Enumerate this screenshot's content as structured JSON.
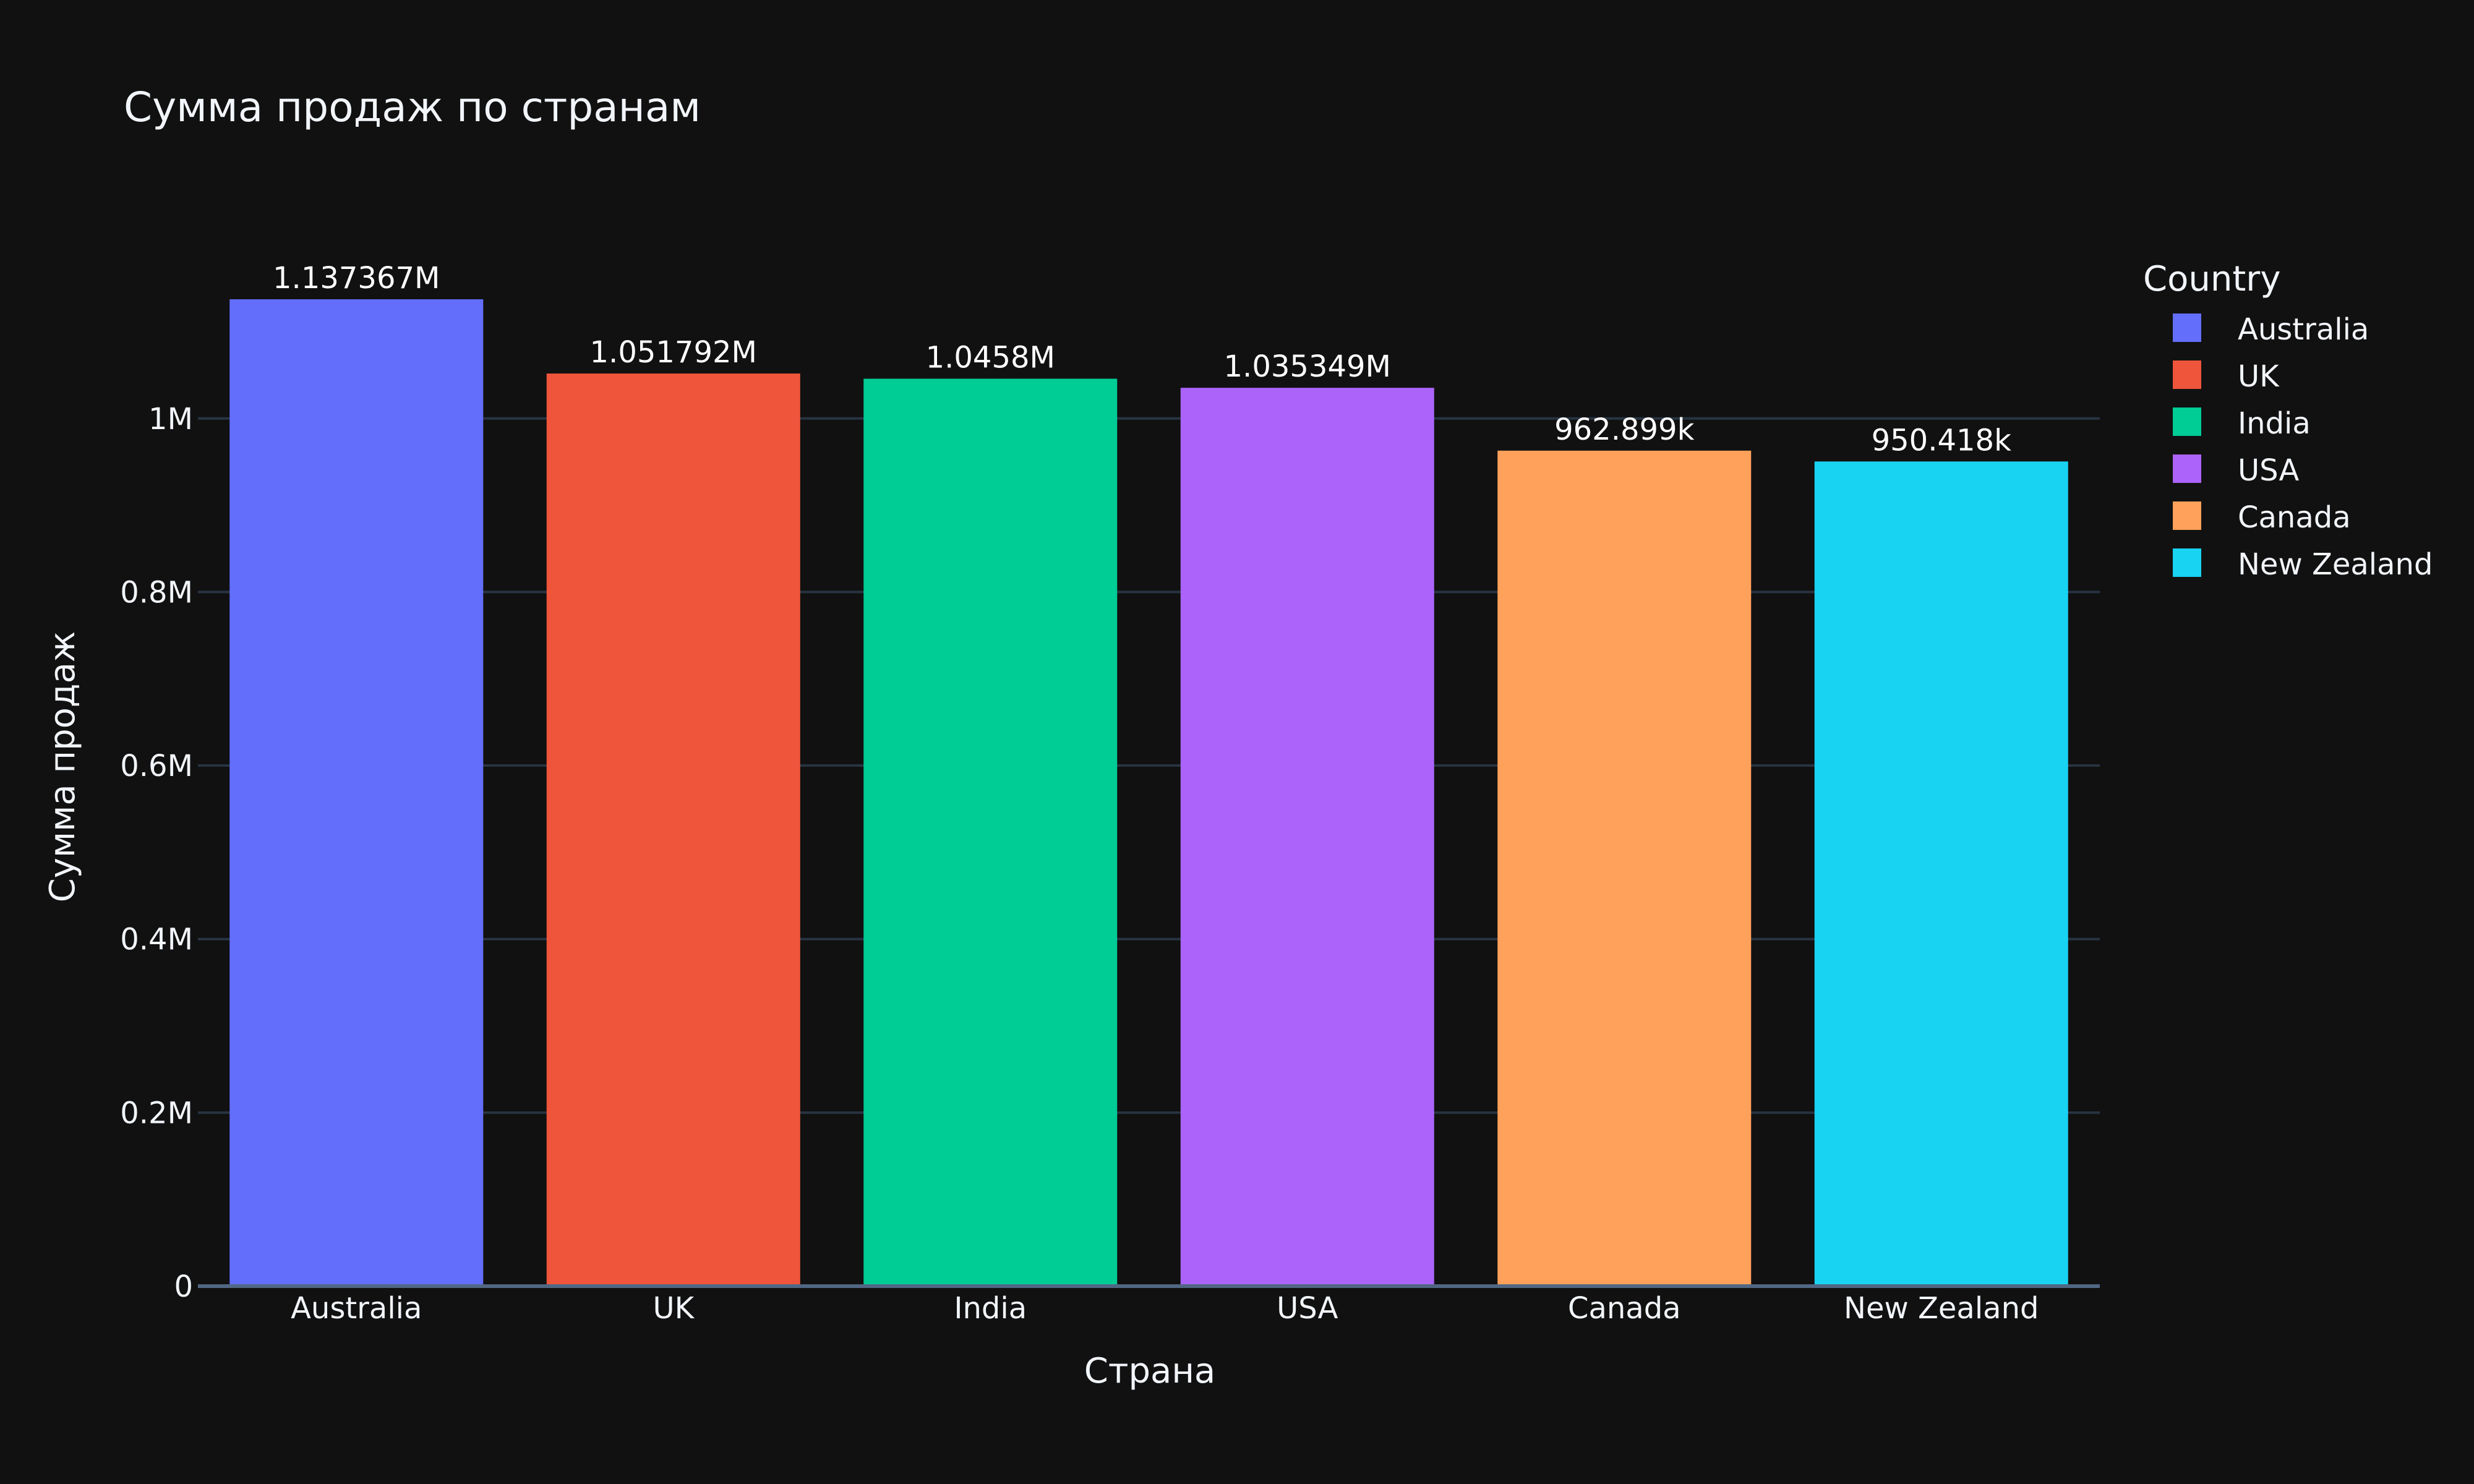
{
  "chart_data": {
    "type": "bar",
    "title": "Сумма продаж по странам",
    "xlabel": "Страна",
    "ylabel": "Сумма продаж",
    "categories": [
      "Australia",
      "UK",
      "India",
      "USA",
      "Canada",
      "New Zealand"
    ],
    "values": [
      1137367,
      1051792,
      1045800,
      1035349,
      962899,
      950418
    ],
    "data_labels": [
      "1.137367M",
      "1.051792M",
      "1.0458M",
      "1.035349M",
      "962.899k",
      "950.418k"
    ],
    "colors": [
      "#636efa",
      "#ef553b",
      "#00cc96",
      "#ab63fa",
      "#ffa15a",
      "#19d3f3"
    ],
    "ylim": [
      0,
      1197228
    ],
    "yticks": [
      0,
      200000,
      400000,
      600000,
      800000,
      1000000
    ],
    "ytick_labels": [
      "0",
      "0.2M",
      "0.4M",
      "0.6M",
      "0.8M",
      "1M"
    ],
    "grid": true,
    "legend": {
      "title": "Country",
      "placement": "right",
      "entries": [
        "Australia",
        "UK",
        "India",
        "USA",
        "Canada",
        "New Zealand"
      ]
    },
    "background": "#111111"
  }
}
